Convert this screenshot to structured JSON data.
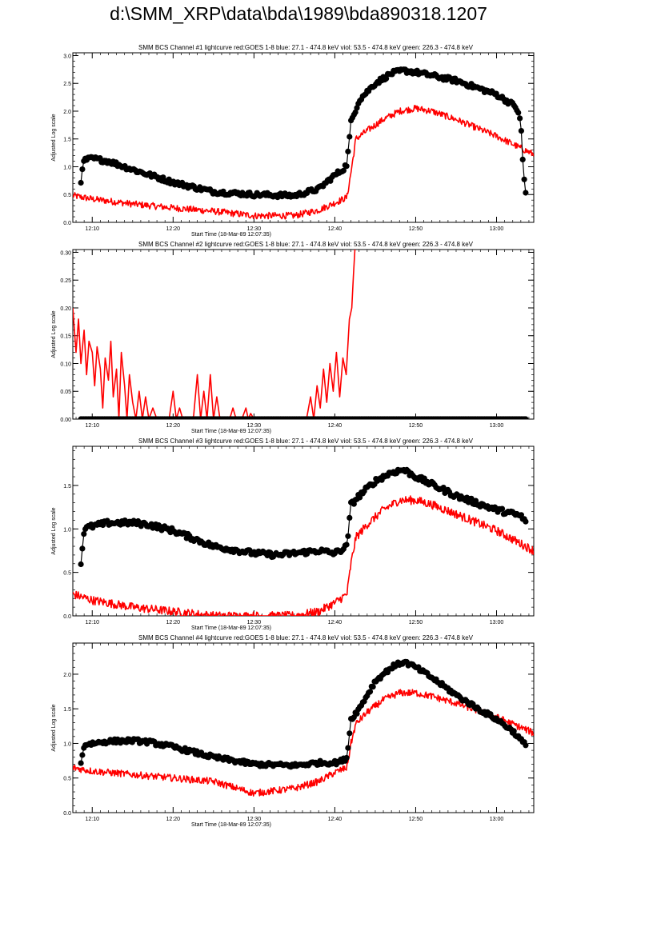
{
  "page": {
    "title": "d:\\SMM_XRP\\data\\bda\\1989\\bda890318.1207"
  },
  "colors": {
    "goes": "#ff0000",
    "bcs": "#000000",
    "axes": "#000000"
  },
  "shared": {
    "xlabel": "Start Time (18-Mar-89 12:07:35)",
    "ylabel": "Adjusted Log scale",
    "x_ticks": [
      "12:10",
      "12:20",
      "12:30",
      "12:40",
      "12:50",
      "13:00"
    ],
    "x_tick_minutes": [
      10,
      20,
      30,
      40,
      50,
      60
    ],
    "x_range_minutes": [
      7.6,
      64.6
    ]
  },
  "chart_data": [
    {
      "type": "line",
      "title": "SMM BCS Channel #1 lightcurve  red:GOES 1-8  blue: 27.1 - 474.8 keV  viol: 53.5 - 474.8 keV  green: 226.3 - 474.8 keV",
      "xlabel": "Start Time (18-Mar-89 12:07:35)",
      "ylabel": "Adjusted Log scale",
      "ylim": [
        0,
        3.05
      ],
      "y_ticks": [
        0.0,
        0.5,
        1.0,
        1.5,
        2.0,
        2.5,
        3.0
      ],
      "y_tick_labels": [
        "0.0",
        "0.5",
        "1.0",
        "1.5",
        "2.0",
        "2.5",
        "3.0"
      ],
      "series": [
        {
          "color": "#ff0000",
          "style": "line",
          "noise": 0.06,
          "x": [
            7.6,
            10,
            15,
            20,
            25,
            30,
            35,
            38,
            40,
            41.5,
            42,
            42.6,
            44,
            46,
            48,
            50,
            52,
            55,
            60,
            64.6
          ],
          "y": [
            0.48,
            0.42,
            0.33,
            0.26,
            0.2,
            0.12,
            0.12,
            0.22,
            0.35,
            0.45,
            0.9,
            1.5,
            1.65,
            1.85,
            2.0,
            2.05,
            2.0,
            1.85,
            1.55,
            1.22
          ]
        },
        {
          "color": "#000000",
          "style": "dots",
          "noise": 0.04,
          "x": [
            8.6,
            9,
            10,
            12,
            15,
            20,
            25,
            30,
            35,
            38,
            40,
            41,
            41.5,
            42,
            43,
            45,
            47,
            48.5,
            50,
            55,
            60,
            62,
            62.4,
            63,
            63.3,
            63.6
          ],
          "y": [
            0.75,
            1.12,
            1.15,
            1.1,
            0.95,
            0.72,
            0.55,
            0.5,
            0.48,
            0.6,
            0.85,
            0.95,
            1.05,
            1.8,
            2.2,
            2.5,
            2.68,
            2.73,
            2.7,
            2.55,
            2.3,
            2.12,
            2.08,
            1.8,
            0.95,
            0.52
          ]
        }
      ]
    },
    {
      "type": "line",
      "title": "SMM BCS Channel #2 lightcurve  red:GOES 1-8  blue: 27.1 - 474.8 keV  viol: 53.5 - 474.8 keV  green: 226.3 - 474.8 keV",
      "xlabel": "Start Time (18-Mar-89 12:07:35)",
      "ylabel": "Adjusted Log scale",
      "ylim": [
        0,
        0.305
      ],
      "y_ticks": [
        0.0,
        0.05,
        0.1,
        0.15,
        0.2,
        0.25,
        0.3
      ],
      "y_tick_labels": [
        "0.00",
        "0.05",
        "0.10",
        "0.15",
        "0.20",
        "0.25",
        "0.30"
      ],
      "series": [
        {
          "color": "#ff0000",
          "style": "line",
          "noise": 0,
          "x": [
            7.6,
            8.0,
            8.3,
            8.6,
            9.0,
            9.3,
            9.6,
            10.0,
            10.3,
            10.6,
            11.0,
            11.3,
            11.6,
            12.0,
            12.3,
            12.6,
            13.0,
            13.3,
            13.6,
            14.0,
            14.3,
            14.6,
            15.0,
            15.4,
            15.8,
            16.2,
            16.6,
            17.0,
            17.5,
            18.0,
            19.5,
            20.0,
            20.4,
            20.8,
            21.2,
            22.5,
            23.0,
            23.4,
            23.8,
            24.2,
            24.6,
            25.0,
            25.4,
            25.8,
            26.2,
            27.0,
            27.4,
            27.8,
            28.5,
            29.0,
            29.3,
            29.6,
            30.0,
            36.5,
            37.0,
            37.4,
            37.8,
            38.2,
            38.6,
            39.0,
            39.4,
            39.8,
            40.2,
            40.6,
            41.0,
            41.4,
            41.8,
            42.1,
            42.3,
            42.5
          ],
          "y": [
            0.2,
            0.12,
            0.18,
            0.1,
            0.16,
            0.08,
            0.14,
            0.12,
            0.06,
            0.13,
            0.09,
            0.02,
            0.11,
            0.07,
            0.14,
            0.04,
            0.09,
            0.0,
            0.12,
            0.06,
            0.0,
            0.08,
            0.03,
            0.0,
            0.05,
            0.0,
            0.04,
            0.0,
            0.02,
            0.0,
            0.0,
            0.05,
            0.0,
            0.02,
            0.0,
            0.0,
            0.08,
            0.0,
            0.05,
            0.0,
            0.08,
            0.0,
            0.04,
            0.0,
            0.0,
            0.0,
            0.02,
            0.0,
            0.0,
            0.02,
            0.0,
            0.01,
            0.0,
            0.0,
            0.04,
            0.0,
            0.06,
            0.02,
            0.09,
            0.03,
            0.1,
            0.05,
            0.12,
            0.04,
            0.11,
            0.08,
            0.18,
            0.2,
            0.26,
            0.31
          ]
        },
        {
          "color": "#000000",
          "style": "dots",
          "noise": 0,
          "x": [
            8.6,
            12,
            16,
            20,
            24,
            28,
            32,
            36,
            40,
            44,
            48,
            52,
            56,
            60,
            63.6
          ],
          "y": [
            0,
            0,
            0,
            0,
            0,
            0,
            0,
            0,
            0,
            0,
            0,
            0,
            0,
            0,
            0
          ]
        }
      ]
    },
    {
      "type": "line",
      "title": "SMM BCS Channel #3 lightcurve  red:GOES 1-8  blue: 27.1 - 474.8 keV  viol: 53.5 - 474.8 keV  green: 226.3 - 474.8 keV",
      "xlabel": "Start Time (18-Mar-89 12:07:35)",
      "ylabel": "Adjusted Log scale",
      "ylim": [
        0,
        1.95
      ],
      "y_ticks": [
        0.0,
        0.5,
        1.0,
        1.5
      ],
      "y_tick_labels": [
        "0.0",
        "0.5",
        "1.0",
        "1.5"
      ],
      "series": [
        {
          "color": "#ff0000",
          "style": "line",
          "noise": 0.05,
          "x": [
            7.6,
            10,
            15,
            20,
            25,
            30,
            35,
            38,
            40,
            41.5,
            42,
            42.6,
            44,
            46,
            48,
            50,
            52,
            55,
            60,
            64.6
          ],
          "y": [
            0.25,
            0.18,
            0.1,
            0.05,
            0.0,
            0.0,
            0.0,
            0.05,
            0.15,
            0.25,
            0.6,
            0.9,
            1.05,
            1.22,
            1.33,
            1.33,
            1.28,
            1.17,
            0.98,
            0.75
          ]
        },
        {
          "color": "#000000",
          "style": "dots",
          "noise": 0.03,
          "x": [
            8.6,
            9,
            10,
            12,
            15,
            17,
            20,
            25,
            30,
            33,
            35,
            38,
            40,
            41,
            41.5,
            42,
            43,
            45,
            47,
            48.5,
            50,
            55,
            60,
            63,
            63.6
          ],
          "y": [
            0.6,
            1.0,
            1.03,
            1.07,
            1.07,
            1.05,
            0.98,
            0.8,
            0.72,
            0.7,
            0.72,
            0.75,
            0.72,
            0.77,
            0.8,
            1.28,
            1.38,
            1.55,
            1.65,
            1.68,
            1.6,
            1.38,
            1.22,
            1.15,
            1.08
          ]
        }
      ]
    },
    {
      "type": "line",
      "title": "SMM BCS Channel #4 lightcurve  red:GOES 1-8  blue: 27.1 - 474.8 keV  viol: 53.5 - 474.8 keV  green: 226.3 - 474.8 keV",
      "xlabel": "Start Time (18-Mar-89 12:07:35)",
      "ylabel": "Adjusted Log scale",
      "ylim": [
        0,
        2.45
      ],
      "y_ticks": [
        0.0,
        0.5,
        1.0,
        1.5,
        2.0
      ],
      "y_tick_labels": [
        "0.0",
        "0.5",
        "1.0",
        "1.5",
        "2.0"
      ],
      "series": [
        {
          "color": "#ff0000",
          "style": "line",
          "noise": 0.05,
          "x": [
            7.6,
            10,
            15,
            20,
            25,
            30,
            35,
            38,
            40,
            41.5,
            42,
            42.6,
            44,
            46,
            48,
            50,
            52,
            55,
            60,
            64.6
          ],
          "y": [
            0.65,
            0.6,
            0.55,
            0.5,
            0.45,
            0.28,
            0.35,
            0.45,
            0.58,
            0.65,
            1.0,
            1.28,
            1.45,
            1.63,
            1.73,
            1.73,
            1.68,
            1.58,
            1.38,
            1.15
          ]
        },
        {
          "color": "#000000",
          "style": "dots",
          "noise": 0.03,
          "x": [
            8.6,
            9,
            10,
            12,
            15,
            17,
            20,
            25,
            30,
            35,
            38,
            40,
            41,
            41.5,
            42,
            43,
            45,
            47,
            48.5,
            50,
            52,
            55,
            58,
            60,
            62,
            63.6
          ],
          "y": [
            0.7,
            0.98,
            1.0,
            1.03,
            1.04,
            1.02,
            0.95,
            0.8,
            0.7,
            0.68,
            0.72,
            0.72,
            0.75,
            0.8,
            1.35,
            1.5,
            1.9,
            2.1,
            2.18,
            2.1,
            1.95,
            1.7,
            1.48,
            1.35,
            1.18,
            0.97
          ]
        }
      ]
    }
  ]
}
